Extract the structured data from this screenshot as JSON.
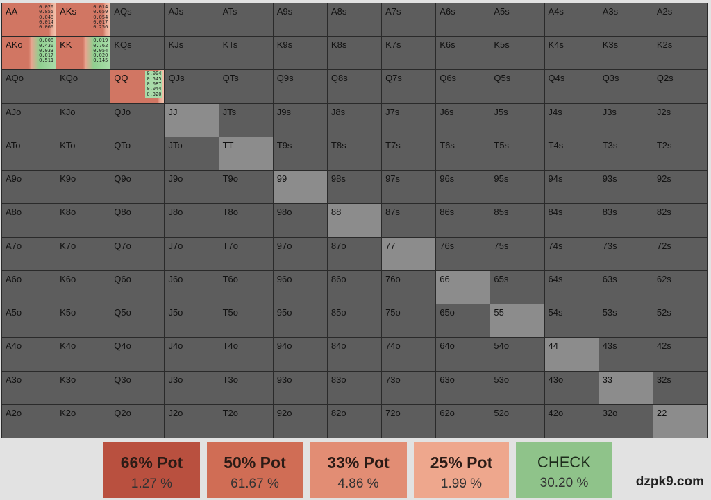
{
  "grid": {
    "rows": [
      [
        "AA",
        "AKs",
        "AQs",
        "AJs",
        "ATs",
        "A9s",
        "A8s",
        "A7s",
        "A6s",
        "A5s",
        "A4s",
        "A3s",
        "A2s"
      ],
      [
        "AKo",
        "KK",
        "KQs",
        "KJs",
        "KTs",
        "K9s",
        "K8s",
        "K7s",
        "K6s",
        "K5s",
        "K4s",
        "K3s",
        "K2s"
      ],
      [
        "AQo",
        "KQo",
        "QQ",
        "QJs",
        "QTs",
        "Q9s",
        "Q8s",
        "Q7s",
        "Q6s",
        "Q5s",
        "Q4s",
        "Q3s",
        "Q2s"
      ],
      [
        "AJo",
        "KJo",
        "QJo",
        "JJ",
        "JTs",
        "J9s",
        "J8s",
        "J7s",
        "J6s",
        "J5s",
        "J4s",
        "J3s",
        "J2s"
      ],
      [
        "ATo",
        "KTo",
        "QTo",
        "JTo",
        "TT",
        "T9s",
        "T8s",
        "T7s",
        "T6s",
        "T5s",
        "T4s",
        "T3s",
        "T2s"
      ],
      [
        "A9o",
        "K9o",
        "Q9o",
        "J9o",
        "T9o",
        "99",
        "98s",
        "97s",
        "96s",
        "95s",
        "94s",
        "93s",
        "92s"
      ],
      [
        "A8o",
        "K8o",
        "Q8o",
        "J8o",
        "T8o",
        "98o",
        "88",
        "87s",
        "86s",
        "85s",
        "84s",
        "83s",
        "82s"
      ],
      [
        "A7o",
        "K7o",
        "Q7o",
        "J7o",
        "T7o",
        "97o",
        "87o",
        "77",
        "76s",
        "75s",
        "74s",
        "73s",
        "72s"
      ],
      [
        "A6o",
        "K6o",
        "Q6o",
        "J6o",
        "T6o",
        "96o",
        "86o",
        "76o",
        "66",
        "65s",
        "64s",
        "63s",
        "62s"
      ],
      [
        "A5o",
        "K5o",
        "Q5o",
        "J5o",
        "T5o",
        "95o",
        "85o",
        "75o",
        "65o",
        "55",
        "54s",
        "53s",
        "52s"
      ],
      [
        "A4o",
        "K4o",
        "Q4o",
        "J4o",
        "T4o",
        "94o",
        "84o",
        "74o",
        "64o",
        "54o",
        "44",
        "43s",
        "42s"
      ],
      [
        "A3o",
        "K3o",
        "Q3o",
        "J3o",
        "T3o",
        "93o",
        "83o",
        "73o",
        "63o",
        "53o",
        "43o",
        "33",
        "32s"
      ],
      [
        "A2o",
        "K2o",
        "Q2o",
        "J2o",
        "T2o",
        "92o",
        "82o",
        "72o",
        "62o",
        "52o",
        "42o",
        "32o",
        "22"
      ]
    ],
    "strategies": {
      "AA": [
        "0.020",
        "0.855",
        "0.048",
        "0.014",
        "0.060"
      ],
      "AKs": [
        "0.014",
        "0.659",
        "0.054",
        "0.017",
        "0.256"
      ],
      "AKo": [
        "0.008",
        "0.430",
        "0.033",
        "0.017",
        "0.511"
      ],
      "KK": [
        "0.019",
        "0.762",
        "0.054",
        "0.020",
        "0.145"
      ],
      "QQ": [
        "0.004",
        "0.545",
        "0.087",
        "0.044",
        "0.320"
      ]
    }
  },
  "actions": [
    {
      "label": "66% Pot",
      "pct": "1.27 %"
    },
    {
      "label": "50% Pot",
      "pct": "61.67 %"
    },
    {
      "label": "33% Pot",
      "pct": "4.86 %"
    },
    {
      "label": "25% Pot",
      "pct": "1.99 %"
    },
    {
      "label": "CHECK",
      "pct": "30.20 %"
    }
  ],
  "watermark": "dzpk9.com",
  "colors": {
    "bet66": "#b9503f",
    "bet50": "#d06d55",
    "bet33": "#e28d74",
    "bet25": "#eea78d",
    "check": "#8fc38a",
    "cell": "#5d5d5d",
    "pair": "#8c8c8c"
  }
}
